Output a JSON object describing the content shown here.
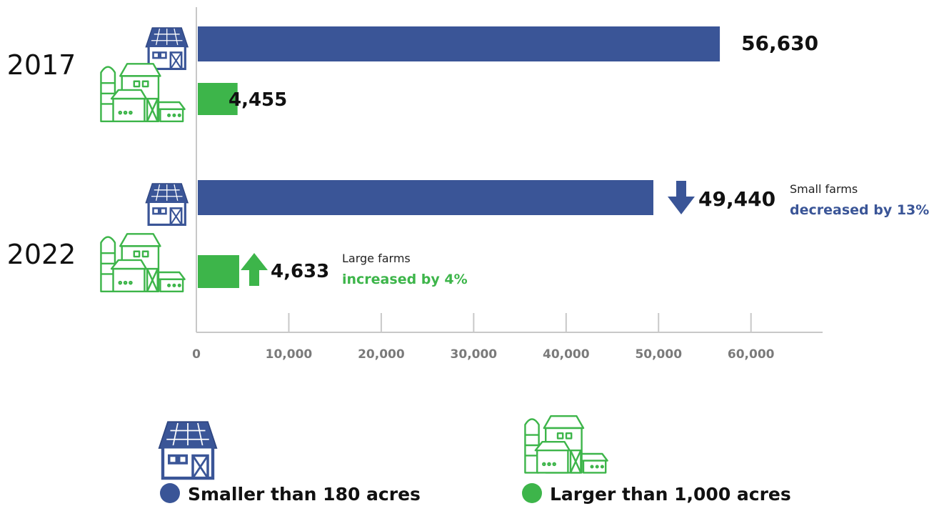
{
  "chart_data": {
    "type": "bar",
    "orientation": "horizontal",
    "categories": [
      "2017",
      "2022"
    ],
    "series": [
      {
        "name": "Smaller than 180 acres",
        "values": [
          56630,
          49440
        ],
        "color": "#3a5597",
        "icon": "small-barn-icon"
      },
      {
        "name": "Larger than 1,000 acres",
        "values": [
          4455,
          4633
        ],
        "color": "#3db54a",
        "icon": "large-farm-icon"
      }
    ],
    "value_labels": [
      [
        "56,630",
        "49,440"
      ],
      [
        "4,455",
        "4,633"
      ]
    ],
    "annotations": [
      {
        "series": 0,
        "category": 1,
        "direction": "down",
        "line1": "Small farms",
        "line2": "decreased by 13%",
        "color": "#3a5597"
      },
      {
        "series": 1,
        "category": 1,
        "direction": "up",
        "line1": "Large farms",
        "line2": "increased by 4%",
        "color": "#3db54a"
      }
    ],
    "xlim": [
      0,
      68000
    ],
    "ticks": [
      0,
      10000,
      20000,
      30000,
      40000,
      50000,
      60000
    ],
    "tick_labels": [
      "0",
      "10,000",
      "20,000",
      "30,000",
      "40,000",
      "50,000",
      "60,000"
    ],
    "legend_position": "bottom",
    "grid": false,
    "axis_color": "#c8c8c8",
    "tick_label_color": "#7a7a7a"
  }
}
